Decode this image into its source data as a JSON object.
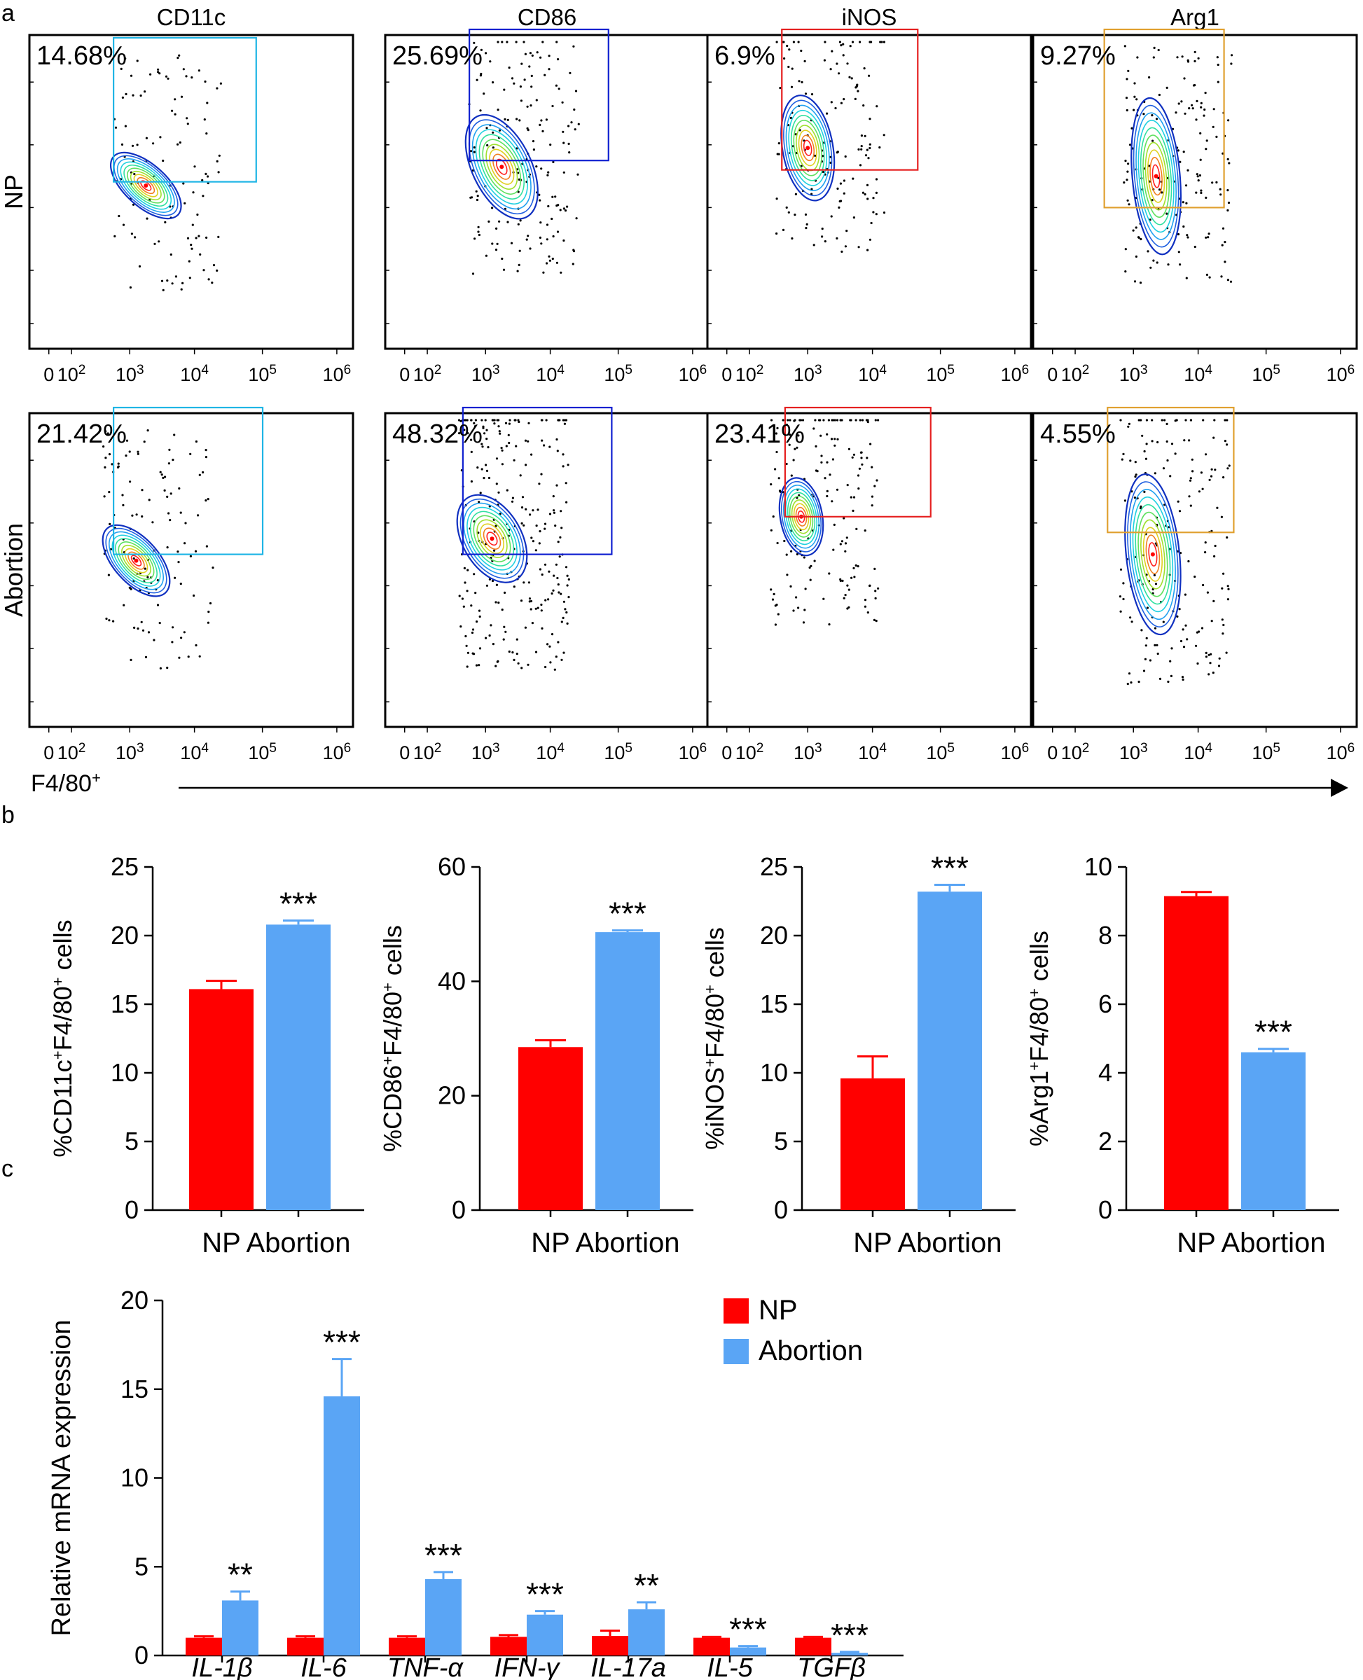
{
  "panel_labels": {
    "a": "a",
    "b": "b",
    "c": "c"
  },
  "colors": {
    "np": "#ff0000",
    "abortion": "#5aa5f5",
    "gate_cd11c": "#1fb5e5",
    "gate_cd86": "#1020d0",
    "gate_inos": "#e52020",
    "gate_arg1": "#e0a030",
    "contour_outer": "#1030c0"
  },
  "flow": {
    "markers": [
      "CD11c",
      "CD86",
      "iNOS",
      "Arg1"
    ],
    "groups": [
      "NP",
      "Abortion"
    ],
    "x_axis_title": "F4/80",
    "x_axis_sup": "+",
    "x_tick_bases": [
      "0",
      "10",
      "10",
      "10",
      "10",
      "10"
    ],
    "x_tick_exps": [
      "",
      "2",
      "3",
      "4",
      "5",
      "6"
    ],
    "percentages": [
      [
        "14.68%",
        "25.69%",
        "6.9%",
        "9.27%"
      ],
      [
        "21.42%",
        "48.32%",
        "23.41%",
        "4.55%"
      ]
    ]
  },
  "chart_data": [
    {
      "type": "bar",
      "title": "",
      "ylabel_parts": [
        "%CD11c",
        "+",
        "F4/80",
        "+",
        " cells"
      ],
      "categories": [
        "NP",
        "Abortion"
      ],
      "values": [
        16.1,
        20.8
      ],
      "errors": [
        0.6,
        0.3
      ],
      "significance": [
        "",
        "***"
      ],
      "ylim": [
        0,
        25
      ],
      "yticks": [
        0,
        5,
        10,
        15,
        20,
        25
      ]
    },
    {
      "type": "bar",
      "title": "",
      "ylabel_parts": [
        "%CD86",
        "+",
        "F4/80",
        "+",
        " cells"
      ],
      "categories": [
        "NP",
        "Abortion"
      ],
      "values": [
        28.5,
        48.6
      ],
      "errors": [
        1.2,
        0.3
      ],
      "significance": [
        "",
        "***"
      ],
      "ylim": [
        0,
        60
      ],
      "yticks": [
        0,
        20,
        40,
        60
      ]
    },
    {
      "type": "bar",
      "title": "",
      "ylabel_parts": [
        "%iNOS",
        "+",
        "F4/80",
        "+",
        " cells"
      ],
      "categories": [
        "NP",
        "Abortion"
      ],
      "values": [
        9.6,
        23.2
      ],
      "errors": [
        1.6,
        0.5
      ],
      "significance": [
        "",
        "***"
      ],
      "ylim": [
        0,
        25
      ],
      "yticks": [
        0,
        5,
        10,
        15,
        20,
        25
      ]
    },
    {
      "type": "bar",
      "title": "",
      "ylabel_parts": [
        "%Arg1",
        "+",
        "F4/80",
        "+",
        " cells"
      ],
      "categories": [
        "NP",
        "Abortion"
      ],
      "values": [
        9.15,
        4.6
      ],
      "errors": [
        0.12,
        0.1
      ],
      "significance": [
        "",
        "***"
      ],
      "ylim": [
        0,
        10
      ],
      "yticks": [
        0,
        2,
        4,
        6,
        8,
        10
      ]
    },
    {
      "type": "bar",
      "title": "",
      "ylabel": "Relative mRNA expression",
      "categories": [
        "IL-1β",
        "IL-6",
        "TNF-α",
        "IFN-γ",
        "IL-17a",
        "IL-5",
        "TGFβ"
      ],
      "series": [
        {
          "name": "NP",
          "values": [
            1.0,
            1.0,
            1.0,
            1.05,
            1.1,
            1.0,
            1.0
          ],
          "errors": [
            0.08,
            0.08,
            0.08,
            0.1,
            0.3,
            0.05,
            0.05
          ]
        },
        {
          "name": "Abortion",
          "values": [
            3.1,
            14.6,
            4.3,
            2.3,
            2.6,
            0.45,
            0.15
          ],
          "errors": [
            0.5,
            2.1,
            0.4,
            0.2,
            0.4,
            0.08,
            0.05
          ]
        }
      ],
      "significance": [
        "**",
        "***",
        "***",
        "***",
        "**",
        "***",
        "***"
      ],
      "ylim": [
        0,
        20
      ],
      "yticks": [
        0,
        5,
        10,
        15,
        20
      ],
      "legend": "top-right"
    }
  ]
}
